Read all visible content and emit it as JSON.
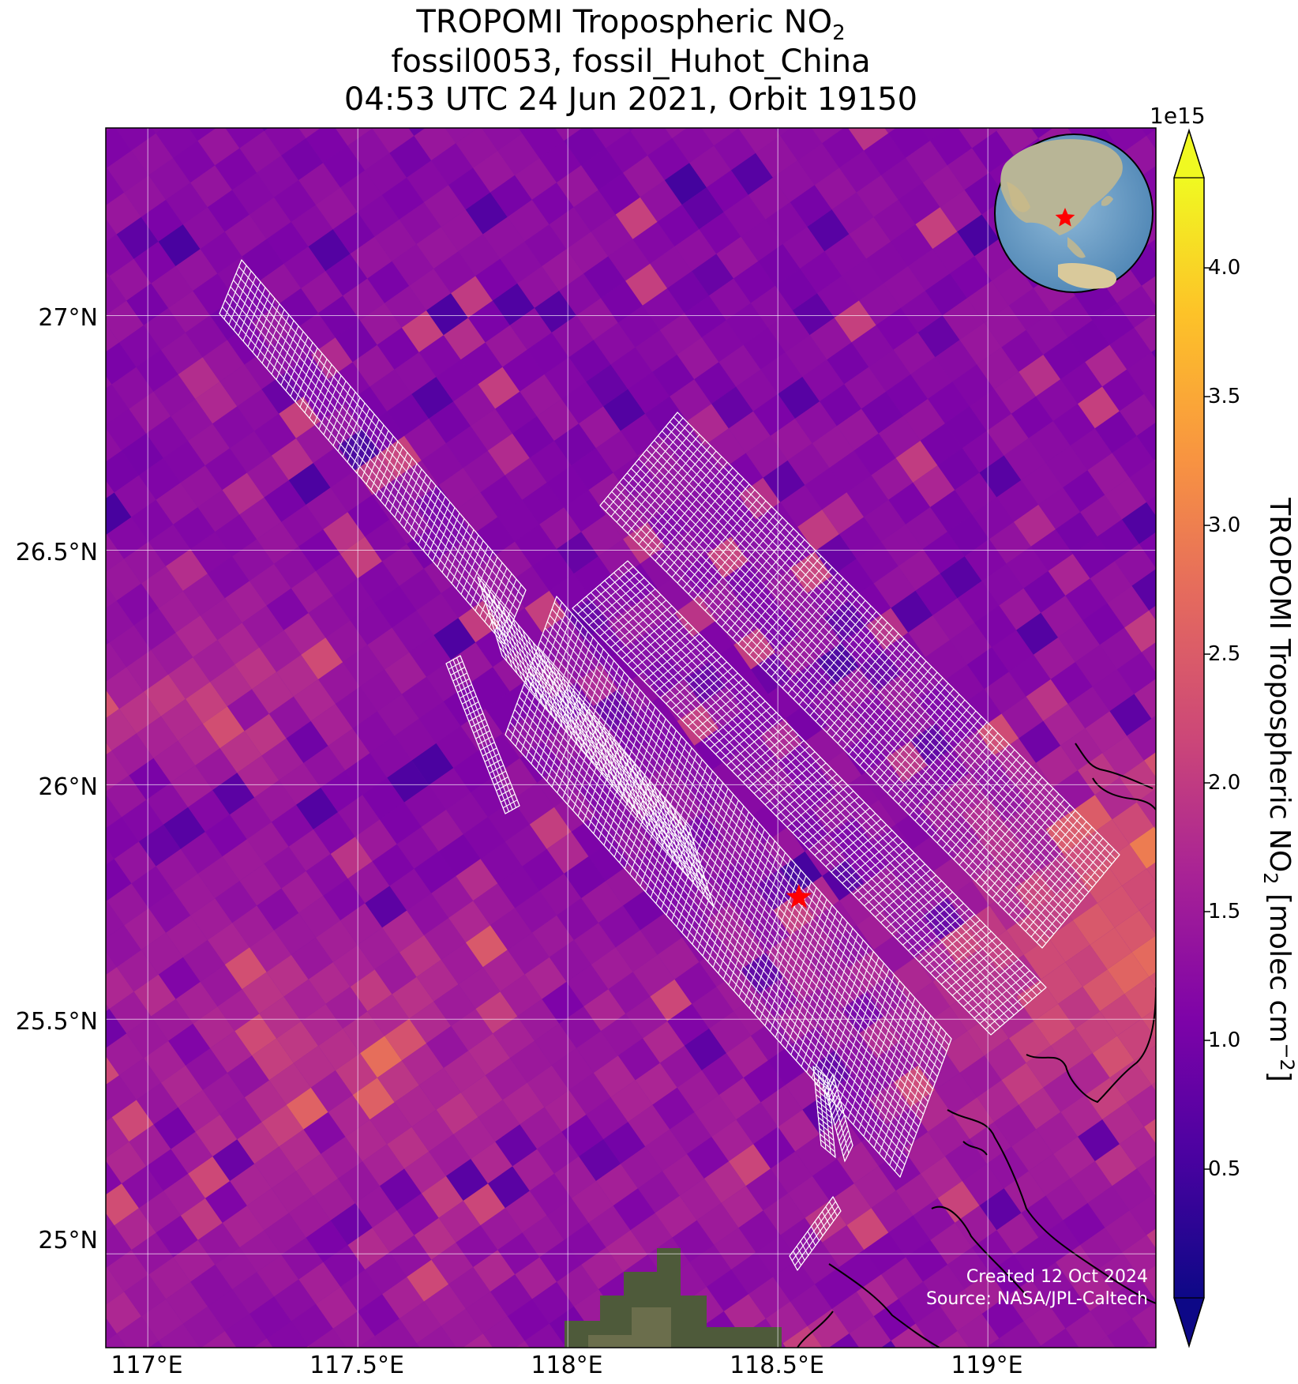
{
  "title": {
    "line1_main": "TROPOMI Tropospheric NO",
    "line1_sub": "2",
    "line2": "fossil0053, fossil_Huhot_China",
    "line3": "04:53 UTC 24 Jun 2021, Orbit 19150"
  },
  "map": {
    "lon_range": [
      116.9,
      119.4
    ],
    "lat_range": [
      24.8,
      27.4
    ],
    "lon_ticks": [
      117.0,
      117.5,
      118.0,
      118.5,
      119.0
    ],
    "lat_ticks": [
      25.0,
      25.5,
      26.0,
      26.5,
      27.0
    ],
    "lon_tick_labels": [
      "117°E",
      "117.5°E",
      "118°E",
      "118.5°E",
      "119°E"
    ],
    "lat_tick_labels": [
      "25°N",
      "25.5°N",
      "26°N",
      "26.5°N",
      "27°N"
    ],
    "target_marker": {
      "lon": 118.55,
      "lat": 25.76,
      "symbol": "red-star"
    },
    "background_colormap": "plasma",
    "gridlines": true
  },
  "colorbar": {
    "scale_note": "1e15",
    "ticks": [
      "0.5",
      "1.0",
      "1.5",
      "2.0",
      "2.5",
      "3.0",
      "3.5",
      "4.0"
    ],
    "tick_values": [
      0.5,
      1.0,
      1.5,
      2.0,
      2.5,
      3.0,
      3.5,
      4.0
    ],
    "range": [
      0.0,
      4.35
    ],
    "label_main": "TROPOMI Tropospheric NO",
    "label_sub": "2",
    "label_unit_pre": " [molec cm",
    "label_unit_sup": "−2",
    "label_unit_post": "]",
    "colormap": "plasma"
  },
  "credits": {
    "created": "Created 12 Oct 2024",
    "source": "Source: NASA/JPL-Caltech"
  },
  "inset": {
    "name": "globe-locator",
    "marker": "red-star"
  }
}
